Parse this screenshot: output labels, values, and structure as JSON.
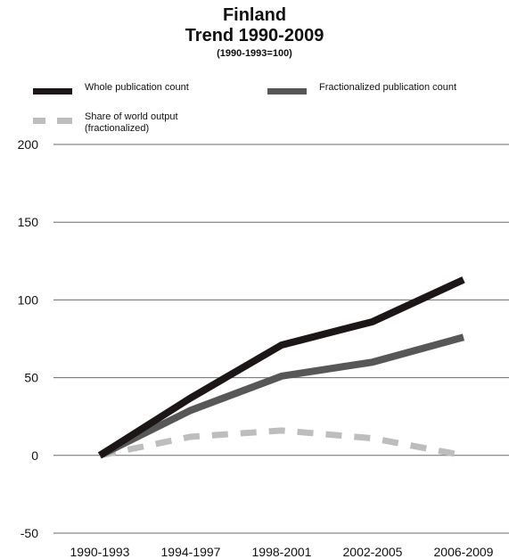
{
  "chart_data": {
    "type": "line",
    "title": "Finland",
    "subtitle": "Trend 1990-2009",
    "note": "(1990-1993=100)",
    "categories": [
      "1990-1993",
      "1994-1997",
      "1998-2001",
      "2002-2005",
      "2006-2009"
    ],
    "ylim": [
      -50,
      200
    ],
    "yticks": [
      "200",
      "150",
      "100",
      "50",
      "0",
      "-50"
    ],
    "grid": true,
    "legend_position": "top",
    "series": [
      {
        "name": "Whole publication count",
        "values": [
          0,
          37,
          71,
          86,
          113
        ],
        "color": "#1c1716",
        "dash": "solid"
      },
      {
        "name": "Fractionalized publication count",
        "values": [
          0,
          29,
          51,
          60,
          76
        ],
        "color": "#575757",
        "dash": "solid"
      },
      {
        "name": "Share of world output (fractionalized)",
        "label_lines": [
          "Share of world output",
          "(fractionalized)"
        ],
        "values": [
          0,
          12,
          16,
          11,
          0
        ],
        "color": "#bdbdbd",
        "dash": "dashed"
      }
    ]
  }
}
